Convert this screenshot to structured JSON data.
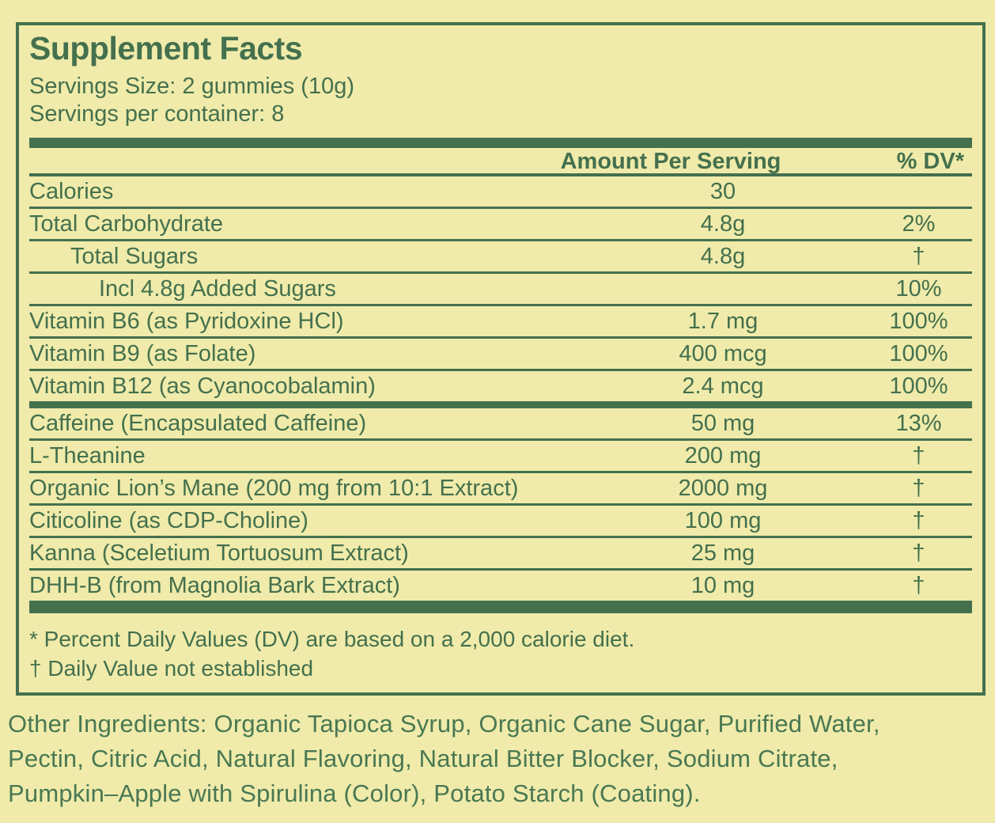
{
  "panel": {
    "title": "Supplement Facts",
    "serving_size": "Servings Size: 2 gummies (10g)",
    "servings_per_container": "Servings per container: 8",
    "columns": {
      "amount": "Amount Per Serving",
      "dv": "% DV*"
    },
    "rows": [
      {
        "name": "Calories",
        "amount": "30",
        "dv": "",
        "indent": 0,
        "thick_after": false
      },
      {
        "name": "Total Carbohydrate",
        "amount": "4.8g",
        "dv": "2%",
        "indent": 0,
        "thick_after": false
      },
      {
        "name": "Total Sugars",
        "amount": "4.8g",
        "dv": "†",
        "indent": 1,
        "thick_after": false
      },
      {
        "name": "Incl 4.8g Added Sugars",
        "amount": "",
        "dv": "10%",
        "indent": 2,
        "thick_after": false
      },
      {
        "name": "Vitamin B6 (as Pyridoxine HCl)",
        "amount": "1.7 mg",
        "dv": "100%",
        "indent": 0,
        "thick_after": false
      },
      {
        "name": "Vitamin B9 (as Folate)",
        "amount": "400 mcg",
        "dv": "100%",
        "indent": 0,
        "thick_after": false
      },
      {
        "name": "Vitamin B12 (as Cyanocobalamin)",
        "amount": "2.4 mcg",
        "dv": "100%",
        "indent": 0,
        "thick_after": true
      },
      {
        "name": "Caffeine (Encapsulated Caffeine)",
        "amount": "50 mg",
        "dv": "13%",
        "indent": 0,
        "thick_after": false
      },
      {
        "name": "L-Theanine",
        "amount": "200 mg",
        "dv": "†",
        "indent": 0,
        "thick_after": false
      },
      {
        "name": "Organic Lion’s Mane (200 mg from 10:1 Extract)",
        "amount": "2000 mg",
        "dv": "†",
        "indent": 0,
        "thick_after": false
      },
      {
        "name": "Citicoline (as CDP-Choline)",
        "amount": "100 mg",
        "dv": "†",
        "indent": 0,
        "thick_after": false
      },
      {
        "name": "Kanna (Sceletium Tortuosum Extract)",
        "amount": "25 mg",
        "dv": "†",
        "indent": 0,
        "thick_after": false
      },
      {
        "name": "DHH-B (from Magnolia Bark Extract)",
        "amount": "10 mg",
        "dv": "†",
        "indent": 0,
        "thick_after": false
      }
    ],
    "footnotes": [
      "* Percent Daily Values (DV) are based on a 2,000 calorie diet.",
      "† Daily Value not established"
    ]
  },
  "other_ingredients": {
    "lines": [
      "Other Ingredients: Organic Tapioca Syrup, Organic Cane Sugar, Purified Water,",
      "Pectin, Citric Acid, Natural Flavoring, Natural Bitter Blocker, Sodium Citrate,",
      "Pumpkin–Apple with Spirulina (Color), Potato Starch (Coating)."
    ]
  },
  "colors": {
    "background": "#f0ebaa",
    "green": "#44704e",
    "other_ingredients_green": "#497853"
  }
}
